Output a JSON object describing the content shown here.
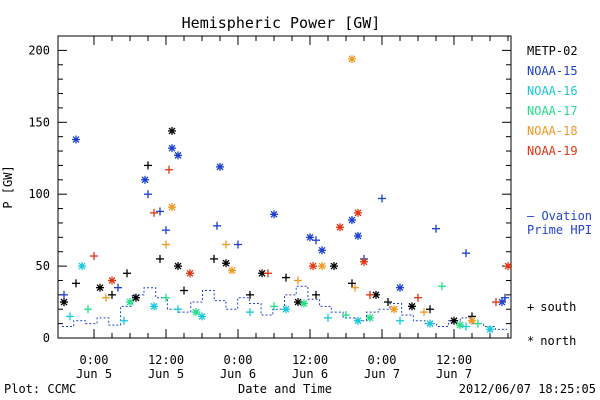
{
  "chart_data": {
    "type": "scatter",
    "title": "Hemispheric Power [GW]",
    "ylabel": "P [GW]",
    "xlabel": "Date and Time",
    "ylim": [
      0,
      210
    ],
    "yticks": [
      0,
      50,
      100,
      150,
      200
    ],
    "xlim": [
      "2012-06-04 18:00",
      "2012-06-07 21:30"
    ],
    "xticks": [
      {
        "time": "2012-06-05 00:00",
        "label_top": "0:00",
        "label_bottom": "Jun 5"
      },
      {
        "time": "2012-06-05 12:00",
        "label_top": "12:00",
        "label_bottom": "Jun 5"
      },
      {
        "time": "2012-06-06 00:00",
        "label_top": "0:00",
        "label_bottom": "Jun 6"
      },
      {
        "time": "2012-06-06 12:00",
        "label_top": "12:00",
        "label_bottom": "Jun 6"
      },
      {
        "time": "2012-06-07 00:00",
        "label_top": "0:00",
        "label_bottom": "Jun 7"
      },
      {
        "time": "2012-06-07 12:00",
        "label_top": "12:00",
        "label_bottom": "Jun 7"
      }
    ],
    "legend": [
      "METP-02",
      "NOAA-15",
      "NOAA-16",
      "NOAA-17",
      "NOAA-18",
      "NOAA-19"
    ],
    "legend_placement": "right",
    "marker_legend": [
      {
        "symbol": "+",
        "label": "south"
      },
      {
        "symbol": "*",
        "label": "north"
      }
    ],
    "ovation": {
      "label_line1": "– Ovation",
      "label_line2": "Prime HPI",
      "color": "#2244cc"
    },
    "series": [
      {
        "name": "METP-02",
        "color": "#000000",
        "south": [
          [
            "2012-06-04 21:00",
            38
          ],
          [
            "2012-06-05 03:00",
            30
          ],
          [
            "2012-06-05 05:30",
            45
          ],
          [
            "2012-06-05 09:00",
            120
          ],
          [
            "2012-06-05 11:00",
            55
          ],
          [
            "2012-06-05 15:00",
            33
          ],
          [
            "2012-06-05 20:00",
            55
          ],
          [
            "2012-06-06 02:00",
            30
          ],
          [
            "2012-06-06 08:00",
            42
          ],
          [
            "2012-06-06 13:00",
            30
          ],
          [
            "2012-06-06 19:00",
            38
          ],
          [
            "2012-06-07 01:00",
            25
          ],
          [
            "2012-06-07 08:00",
            20
          ],
          [
            "2012-06-07 15:00",
            15
          ]
        ],
        "north": [
          [
            "2012-06-04 19:00",
            25
          ],
          [
            "2012-06-05 01:00",
            35
          ],
          [
            "2012-06-05 07:00",
            28
          ],
          [
            "2012-06-05 13:00",
            144
          ],
          [
            "2012-06-05 14:00",
            50
          ],
          [
            "2012-06-05 22:00",
            52
          ],
          [
            "2012-06-06 04:00",
            45
          ],
          [
            "2012-06-06 10:00",
            25
          ],
          [
            "2012-06-06 16:00",
            50
          ],
          [
            "2012-06-06 23:00",
            30
          ],
          [
            "2012-06-07 05:00",
            22
          ],
          [
            "2012-06-07 12:00",
            12
          ]
        ]
      },
      {
        "name": "NOAA-15",
        "color": "#1a3fcc",
        "south": [
          [
            "2012-06-04 19:00",
            30
          ],
          [
            "2012-06-05 04:00",
            35
          ],
          [
            "2012-06-05 09:00",
            100
          ],
          [
            "2012-06-05 11:00",
            88
          ],
          [
            "2012-06-05 12:00",
            75
          ],
          [
            "2012-06-05 20:30",
            78
          ],
          [
            "2012-06-06 00:00",
            65
          ],
          [
            "2012-06-06 13:00",
            68
          ],
          [
            "2012-06-06 21:00",
            55
          ],
          [
            "2012-06-07 00:00",
            97
          ],
          [
            "2012-06-07 09:00",
            76
          ],
          [
            "2012-06-07 14:00",
            59
          ],
          [
            "2012-06-07 20:30",
            28
          ]
        ],
        "north": [
          [
            "2012-06-04 21:00",
            138
          ],
          [
            "2012-06-05 08:30",
            110
          ],
          [
            "2012-06-05 13:00",
            132
          ],
          [
            "2012-06-05 14:00",
            127
          ],
          [
            "2012-06-05 21:00",
            119
          ],
          [
            "2012-06-06 06:00",
            86
          ],
          [
            "2012-06-06 12:00",
            70
          ],
          [
            "2012-06-06 14:00",
            61
          ],
          [
            "2012-06-06 19:00",
            82
          ],
          [
            "2012-06-06 20:00",
            71
          ],
          [
            "2012-06-07 03:00",
            35
          ],
          [
            "2012-06-07 20:00",
            25
          ]
        ]
      },
      {
        "name": "NOAA-16",
        "color": "#19c8d8",
        "south": [
          [
            "2012-06-04 20:00",
            15
          ],
          [
            "2012-06-05 05:00",
            12
          ],
          [
            "2012-06-05 14:00",
            20
          ],
          [
            "2012-06-06 02:00",
            18
          ],
          [
            "2012-06-06 15:00",
            14
          ],
          [
            "2012-06-07 03:00",
            12
          ],
          [
            "2012-06-07 14:00",
            8
          ]
        ],
        "north": [
          [
            "2012-06-04 22:00",
            50
          ],
          [
            "2012-06-05 10:00",
            22
          ],
          [
            "2012-06-05 18:00",
            15
          ],
          [
            "2012-06-06 08:00",
            20
          ],
          [
            "2012-06-06 20:00",
            12
          ],
          [
            "2012-06-07 08:00",
            10
          ],
          [
            "2012-06-07 18:00",
            6
          ]
        ]
      },
      {
        "name": "NOAA-17",
        "color": "#22dd88",
        "south": [
          [
            "2012-06-04 23:00",
            20
          ],
          [
            "2012-06-05 12:00",
            28
          ],
          [
            "2012-06-06 06:00",
            22
          ],
          [
            "2012-06-06 18:00",
            16
          ],
          [
            "2012-06-07 10:00",
            36
          ],
          [
            "2012-06-07 16:00",
            10
          ]
        ],
        "north": [
          [
            "2012-06-05 06:00",
            25
          ],
          [
            "2012-06-05 17:00",
            18
          ],
          [
            "2012-06-06 11:00",
            24
          ],
          [
            "2012-06-06 22:00",
            14
          ],
          [
            "2012-06-07 13:00",
            9
          ]
        ]
      },
      {
        "name": "NOAA-18",
        "color": "#ee9922",
        "south": [
          [
            "2012-06-05 02:00",
            28
          ],
          [
            "2012-06-05 12:00",
            65
          ],
          [
            "2012-06-05 22:00",
            65
          ],
          [
            "2012-06-06 10:00",
            40
          ],
          [
            "2012-06-06 19:30",
            35
          ],
          [
            "2012-06-07 07:00",
            18
          ]
        ],
        "north": [
          [
            "2012-06-05 13:00",
            91
          ],
          [
            "2012-06-05 23:00",
            47
          ],
          [
            "2012-06-06 19:00",
            194
          ],
          [
            "2012-06-06 14:00",
            50
          ],
          [
            "2012-06-07 02:00",
            20
          ],
          [
            "2012-06-07 15:00",
            12
          ]
        ]
      },
      {
        "name": "NOAA-19",
        "color": "#e03311",
        "south": [
          [
            "2012-06-05 00:00",
            57
          ],
          [
            "2012-06-05 12:30",
            117
          ],
          [
            "2012-06-05 10:00",
            87
          ],
          [
            "2012-06-06 05:00",
            45
          ],
          [
            "2012-06-06 22:00",
            30
          ],
          [
            "2012-06-07 06:00",
            28
          ],
          [
            "2012-06-07 19:00",
            25
          ]
        ],
        "north": [
          [
            "2012-06-05 03:00",
            40
          ],
          [
            "2012-06-05 16:00",
            45
          ],
          [
            "2012-06-06 12:30",
            50
          ],
          [
            "2012-06-06 17:00",
            77
          ],
          [
            "2012-06-06 20:00",
            87
          ],
          [
            "2012-06-06 21:00",
            53
          ],
          [
            "2012-06-07 21:00",
            50
          ]
        ]
      }
    ]
  },
  "footer": {
    "left": "Plot: CCMC",
    "right": "2012/06/07 18:25:05"
  }
}
